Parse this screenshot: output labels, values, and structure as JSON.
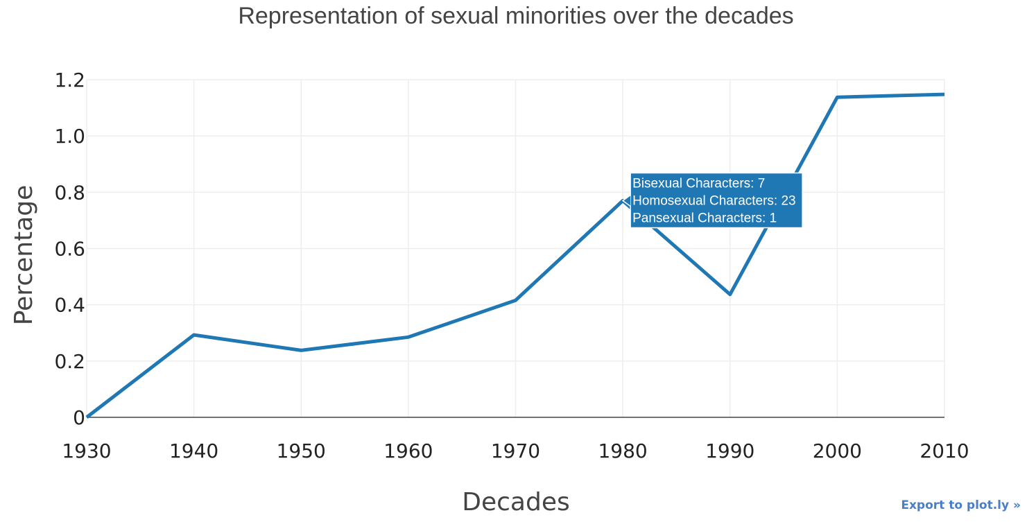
{
  "chart_data": {
    "type": "line",
    "title": "Representation of sexual minorities over the decades",
    "xlabel": "Decades",
    "ylabel": "Percentage",
    "x": [
      1930,
      1940,
      1950,
      1960,
      1970,
      1980,
      1990,
      2000,
      2010
    ],
    "x_tick_labels": [
      "1930",
      "1940",
      "1950",
      "1960",
      "1970",
      "1980",
      "1990",
      "2000",
      "2010"
    ],
    "xlim": [
      1930,
      2010
    ],
    "y_ticks": [
      0,
      0.2,
      0.4,
      0.6,
      0.8,
      1.0,
      1.2
    ],
    "y_tick_labels": [
      "0",
      "0.2",
      "0.4",
      "0.6",
      "0.8",
      "1.0",
      "1.2"
    ],
    "ylim": [
      0,
      1.2
    ],
    "grid": true,
    "series": [
      {
        "values": [
          0,
          0.293,
          0.238,
          0.285,
          0.416,
          0.77,
          0.437,
          1.138,
          1.148
        ],
        "color": "#1f77b4"
      }
    ],
    "tooltip": {
      "x": 1980,
      "lines": [
        "Bisexual Characters: 7",
        "Homosexual Characters: 23",
        "Pansexual Characters: 1"
      ],
      "color": "#1f77b4"
    }
  },
  "export_link": "Export to plot.ly »"
}
